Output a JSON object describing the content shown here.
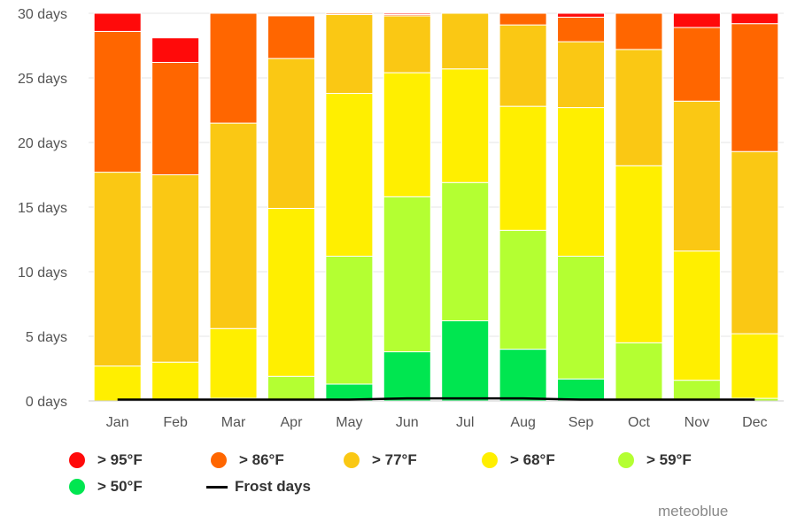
{
  "chart_data": {
    "type": "bar",
    "stacked": true,
    "y_ticks": [
      "0 days",
      "5 days",
      "10 days",
      "15 days",
      "20 days",
      "25 days",
      "30 days"
    ],
    "ylim": [
      0,
      30
    ],
    "grid": true,
    "legend_placement": "bottom",
    "categories": [
      "Jan",
      "Feb",
      "Mar",
      "Apr",
      "May",
      "Jun",
      "Jul",
      "Aug",
      "Sep",
      "Oct",
      "Nov",
      "Dec"
    ],
    "series": [
      {
        "name": "> 50°F",
        "color": "#00e650",
        "values": [
          0,
          0,
          0,
          0,
          1.3,
          3.8,
          6.2,
          4.0,
          1.7,
          0.1,
          0,
          0
        ]
      },
      {
        "name": "> 59°F",
        "color": "#b4ff32",
        "values": [
          0,
          0,
          0.2,
          1.9,
          9.9,
          12.0,
          10.7,
          9.2,
          9.5,
          4.4,
          1.6,
          0.2
        ]
      },
      {
        "name": "> 68°F",
        "color": "#ffef00",
        "values": [
          2.7,
          3.0,
          5.4,
          13.0,
          12.6,
          9.6,
          8.8,
          9.6,
          11.5,
          13.7,
          10.0,
          5.0
        ]
      },
      {
        "name": "> 77°F",
        "color": "#fac814",
        "values": [
          15.0,
          14.5,
          15.9,
          11.6,
          6.1,
          4.4,
          4.3,
          6.3,
          5.1,
          9.0,
          11.6,
          14.1
        ]
      },
      {
        "name": "> 86°F",
        "color": "#ff6600",
        "values": [
          10.9,
          8.7,
          8.5,
          3.3,
          0.1,
          0.1,
          0,
          0.9,
          1.9,
          2.8,
          5.7,
          9.9
        ]
      },
      {
        "name": "> 95°F",
        "color": "#ff0a0a",
        "values": [
          1.4,
          1.9,
          0,
          0,
          0,
          0.1,
          0,
          0,
          0.3,
          0,
          1.1,
          0.8
        ]
      }
    ],
    "frost_days": {
      "name": "Frost days",
      "color": "#000000",
      "values": [
        0.1,
        0.1,
        0.1,
        0.1,
        0.1,
        0.2,
        0.2,
        0.2,
        0.1,
        0.1,
        0.1,
        0.1
      ]
    }
  },
  "legend": {
    "items": [
      {
        "label": "> 95°F",
        "color": "#ff0a0a",
        "kind": "dot"
      },
      {
        "label": "> 86°F",
        "color": "#ff6600",
        "kind": "dot"
      },
      {
        "label": "> 77°F",
        "color": "#fac814",
        "kind": "dot"
      },
      {
        "label": "> 68°F",
        "color": "#ffef00",
        "kind": "dot"
      },
      {
        "label": "> 59°F",
        "color": "#b4ff32",
        "kind": "dot"
      },
      {
        "label": "> 50°F",
        "color": "#00e650",
        "kind": "dot"
      },
      {
        "label": "Frost days",
        "color": "#000000",
        "kind": "line"
      }
    ]
  },
  "credit": "meteoblue"
}
